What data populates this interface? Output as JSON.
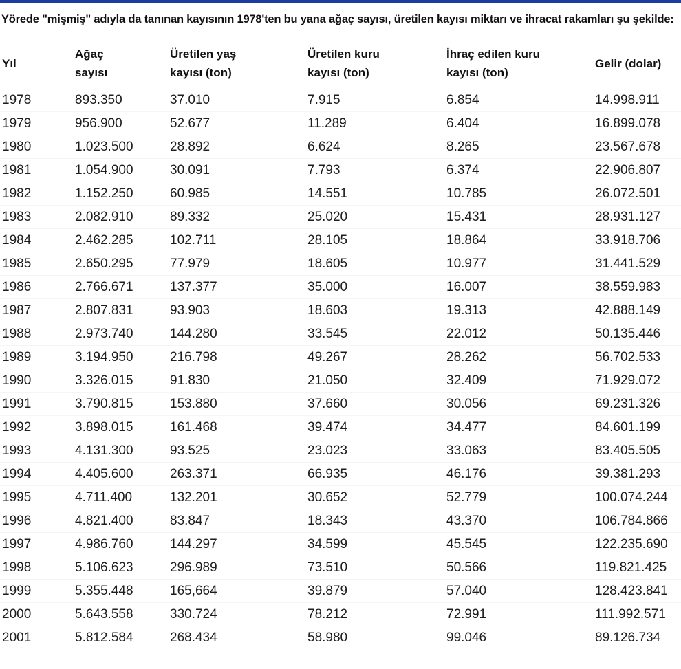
{
  "page": {
    "intro": "Yörede \"mişmiş\" adıyla da tanınan kayısının 1978'ten bu yana ağaç sayısı, üretilen kayısı miktarı ve ihracat rakamları şu şekilde:"
  },
  "theme": {
    "top_bar_color": "#1b3ca0",
    "text_color": "#1d1d1d"
  },
  "table": {
    "columns": [
      "Yıl",
      "Ağaç sayısı",
      "Üretilen yaş kayısı (ton)",
      "Üretilen kuru kayısı (ton)",
      "İhraç edilen kuru kayısı (ton)",
      "Gelir (dolar)"
    ],
    "rows": [
      [
        "1978",
        "893.350",
        "37.010",
        "7.915",
        "6.854",
        "14.998.911"
      ],
      [
        "1979",
        "956.900",
        "52.677",
        "11.289",
        "6.404",
        "16.899.078"
      ],
      [
        "1980",
        "1.023.500",
        "28.892",
        "6.624",
        "8.265",
        "23.567.678"
      ],
      [
        "1981",
        "1.054.900",
        "30.091",
        "7.793",
        "6.374",
        "22.906.807"
      ],
      [
        "1982",
        "1.152.250",
        "60.985",
        "14.551",
        "10.785",
        "26.072.501"
      ],
      [
        "1983",
        "2.082.910",
        "89.332",
        "25.020",
        "15.431",
        "28.931.127"
      ],
      [
        "1984",
        "2.462.285",
        "102.711",
        "28.105",
        "18.864",
        "33.918.706"
      ],
      [
        "1985",
        "2.650.295",
        "77.979",
        "18.605",
        "10.977",
        "31.441.529"
      ],
      [
        "1986",
        "2.766.671",
        "137.377",
        "35.000",
        "16.007",
        "38.559.983"
      ],
      [
        "1987",
        "2.807.831",
        "93.903",
        "18.603",
        "19.313",
        "42.888.149"
      ],
      [
        "1988",
        "2.973.740",
        "144.280",
        "33.545",
        "22.012",
        "50.135.446"
      ],
      [
        "1989",
        "3.194.950",
        "216.798",
        "49.267",
        "28.262",
        "56.702.533"
      ],
      [
        "1990",
        "3.326.015",
        "91.830",
        "21.050",
        "32.409",
        "71.929.072"
      ],
      [
        "1991",
        "3.790.815",
        "153.880",
        "37.660",
        "30.056",
        "69.231.326"
      ],
      [
        "1992",
        "3.898.015",
        "161.468",
        "39.474",
        "34.477",
        "84.601.199"
      ],
      [
        "1993",
        "4.131.300",
        "93.525",
        "23.023",
        "33.063",
        "83.405.505"
      ],
      [
        "1994",
        "4.405.600",
        "263.371",
        "66.935",
        "46.176",
        "39.381.293"
      ],
      [
        "1995",
        "4.711.400",
        "132.201",
        "30.652",
        "52.779",
        "100.074.244"
      ],
      [
        "1996",
        "4.821.400",
        "83.847",
        "18.343",
        "43.370",
        "106.784.866"
      ],
      [
        "1997",
        "4.986.760",
        "144.297",
        "34.599",
        "45.545",
        "122.235.690"
      ],
      [
        "1998",
        "5.106.623",
        "296.989",
        "73.510",
        "50.566",
        "119.821.425"
      ],
      [
        "1999",
        "5.355.448",
        "165,664",
        "39.879",
        "57.040",
        "128.423.841"
      ],
      [
        "2000",
        "5.643.558",
        "330.724",
        "78.212",
        "72.991",
        "111.992.571"
      ],
      [
        "2001",
        "5.812.584",
        "268.434",
        "58.980",
        "99.046",
        "89.126.734"
      ]
    ]
  }
}
